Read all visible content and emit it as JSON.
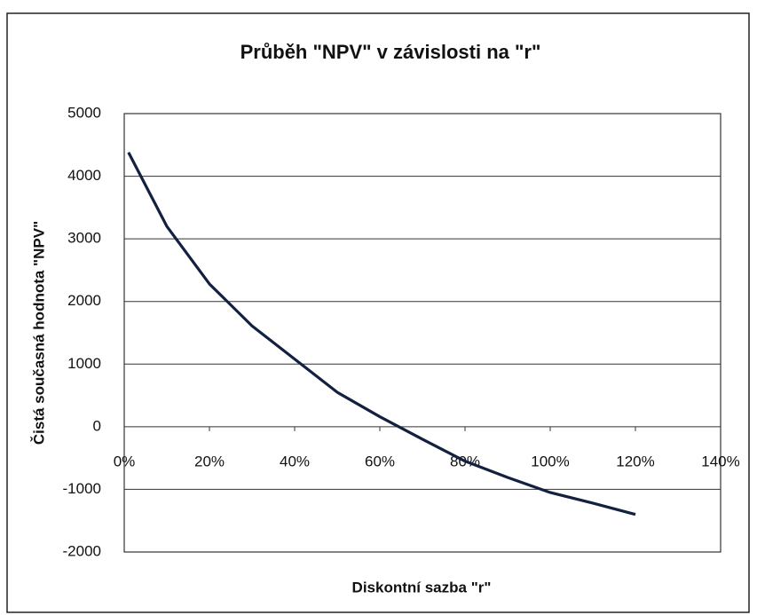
{
  "chart_data": {
    "type": "line",
    "title": "Průběh \"NPV\" v závislosti na \"r\"",
    "x_label": "Diskontní sazba \"r\"",
    "y_label": "Čistá současná hodnota \"NPV\"",
    "x": [
      1,
      10,
      20,
      30,
      40,
      50,
      60,
      70,
      80,
      90,
      100,
      110,
      120
    ],
    "series": [
      {
        "name": "NPV",
        "color": "#12213f",
        "values": [
          4380,
          3200,
          2280,
          1610,
          1080,
          550,
          160,
          -200,
          -550,
          -810,
          -1050,
          -1220,
          -1400
        ]
      }
    ],
    "xlim": [
      0,
      140
    ],
    "xticks": [
      {
        "value": 0,
        "label": "0%"
      },
      {
        "value": 20,
        "label": "20%"
      },
      {
        "value": 40,
        "label": "40%"
      },
      {
        "value": 60,
        "label": "60%"
      },
      {
        "value": 80,
        "label": "80%"
      },
      {
        "value": 100,
        "label": "100%"
      },
      {
        "value": 120,
        "label": "120%"
      },
      {
        "value": 140,
        "label": "140%"
      }
    ],
    "ylim": [
      -2000,
      5000
    ],
    "yticks": [
      -2000,
      -1000,
      0,
      1000,
      2000,
      3000,
      4000,
      5000
    ],
    "grid": true
  }
}
